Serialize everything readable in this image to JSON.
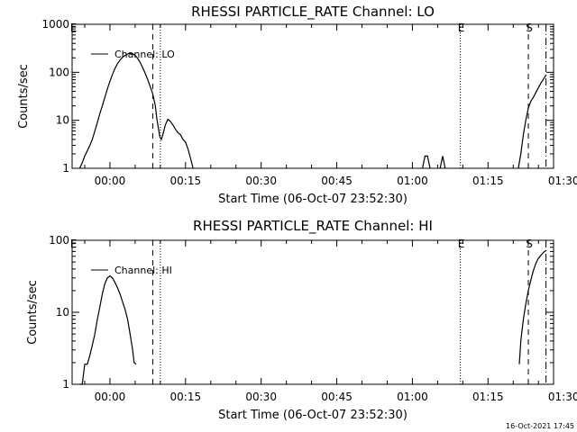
{
  "chart_data": [
    {
      "type": "line",
      "title": "RHESSI PARTICLE_RATE Channel: LO",
      "xlabel": "Start Time (06-Oct-07 23:52:30)",
      "ylabel": "Counts/sec",
      "yscale": "log",
      "ylim": [
        1,
        1000
      ],
      "xlim_minutes": [
        -7.5,
        88
      ],
      "xticks": [
        {
          "label": "00:00",
          "value": 0
        },
        {
          "label": "00:15",
          "value": 15
        },
        {
          "label": "00:30",
          "value": 30
        },
        {
          "label": "00:45",
          "value": 45
        },
        {
          "label": "01:00",
          "value": 60
        },
        {
          "label": "01:15",
          "value": 75
        },
        {
          "label": "01:30",
          "value": 90
        }
      ],
      "yticks": [
        {
          "label": "1",
          "value": 1
        },
        {
          "label": "10",
          "value": 10
        },
        {
          "label": "100",
          "value": 100
        },
        {
          "label": "1000",
          "value": 1000
        }
      ],
      "legend": {
        "label": "Channel: LO",
        "placement": "top-left"
      },
      "markers": [
        {
          "label": "E",
          "x": -7.4,
          "style": "none"
        },
        {
          "label": "",
          "x": 8.5,
          "style": "dashed"
        },
        {
          "label": "",
          "x": 10.0,
          "style": "dotted"
        },
        {
          "label": "E",
          "x": 69.5,
          "style": "dotted"
        },
        {
          "label": "S",
          "x": 83.0,
          "style": "dashed"
        },
        {
          "label": "",
          "x": 86.5,
          "style": "dashdot"
        }
      ],
      "series": [
        {
          "name": "Channel: LO",
          "segments": [
            [
              [
                -6.0,
                1.0
              ],
              [
                -5.5,
                1.3
              ],
              [
                -5.0,
                1.8
              ],
              [
                -4.5,
                2.3
              ],
              [
                -4.0,
                3.0
              ],
              [
                -3.5,
                4.0
              ],
              [
                -3.0,
                6.0
              ],
              [
                -2.5,
                9.0
              ],
              [
                -2.0,
                14.0
              ],
              [
                -1.5,
                20.0
              ],
              [
                -1.0,
                30.0
              ],
              [
                -0.5,
                45.0
              ],
              [
                0.0,
                65.0
              ],
              [
                0.5,
                90.0
              ],
              [
                1.0,
                120.0
              ],
              [
                1.5,
                150.0
              ],
              [
                2.0,
                180.0
              ],
              [
                2.5,
                205.0
              ],
              [
                3.0,
                225.0
              ],
              [
                3.5,
                240.0
              ],
              [
                4.0,
                250.0
              ],
              [
                4.5,
                245.0
              ],
              [
                5.0,
                225.0
              ],
              [
                5.5,
                195.0
              ],
              [
                6.0,
                160.0
              ],
              [
                6.5,
                125.0
              ],
              [
                7.0,
                95.0
              ],
              [
                7.5,
                70.0
              ],
              [
                8.0,
                50.0
              ],
              [
                8.5,
                35.0
              ],
              [
                9.0,
                20.0
              ],
              [
                9.3,
                11.0
              ],
              [
                9.6,
                7.0
              ],
              [
                9.9,
                4.5
              ],
              [
                10.2,
                4.0
              ],
              [
                10.5,
                5.0
              ],
              [
                11.0,
                8.0
              ],
              [
                11.5,
                10.5
              ],
              [
                12.0,
                9.5
              ],
              [
                12.5,
                8.0
              ],
              [
                13.0,
                6.5
              ],
              [
                13.5,
                5.5
              ],
              [
                14.0,
                5.0
              ],
              [
                14.5,
                4.0
              ],
              [
                15.0,
                3.5
              ],
              [
                15.5,
                2.5
              ],
              [
                16.0,
                1.6
              ],
              [
                16.5,
                1.0
              ]
            ],
            [
              [
                62.0,
                1.0
              ],
              [
                62.5,
                1.8
              ],
              [
                63.0,
                1.8
              ],
              [
                63.5,
                1.0
              ]
            ],
            [
              [
                65.5,
                1.0
              ],
              [
                66.0,
                1.8
              ],
              [
                66.5,
                1.0
              ]
            ],
            [
              [
                81.0,
                1.0
              ],
              [
                81.5,
                2.0
              ],
              [
                82.0,
                5.0
              ],
              [
                82.5,
                10.0
              ],
              [
                83.0,
                18.0
              ],
              [
                83.5,
                25.0
              ],
              [
                84.0,
                30.0
              ],
              [
                84.5,
                38.0
              ],
              [
                85.0,
                48.0
              ],
              [
                85.5,
                60.0
              ],
              [
                86.0,
                72.0
              ],
              [
                86.5,
                88.0
              ]
            ]
          ]
        }
      ]
    },
    {
      "type": "line",
      "title": "RHESSI PARTICLE_RATE Channel: HI",
      "xlabel": "Start Time (06-Oct-07 23:52:30)",
      "ylabel": "Counts/sec",
      "yscale": "log",
      "ylim": [
        1,
        100
      ],
      "xlim_minutes": [
        -7.5,
        88
      ],
      "xticks": [
        {
          "label": "00:00",
          "value": 0
        },
        {
          "label": "00:15",
          "value": 15
        },
        {
          "label": "00:30",
          "value": 30
        },
        {
          "label": "00:45",
          "value": 45
        },
        {
          "label": "01:00",
          "value": 60
        },
        {
          "label": "01:15",
          "value": 75
        },
        {
          "label": "01:30",
          "value": 90
        }
      ],
      "yticks": [
        {
          "label": "1",
          "value": 1
        },
        {
          "label": "10",
          "value": 10
        },
        {
          "label": "100",
          "value": 100
        }
      ],
      "legend": {
        "label": "Channel: HI",
        "placement": "top-left"
      },
      "markers": [
        {
          "label": "E",
          "x": -7.4,
          "style": "none"
        },
        {
          "label": "",
          "x": 8.5,
          "style": "dashed"
        },
        {
          "label": "",
          "x": 10.0,
          "style": "dotted"
        },
        {
          "label": "E",
          "x": 69.5,
          "style": "dotted"
        },
        {
          "label": "S",
          "x": 83.0,
          "style": "dashed"
        },
        {
          "label": "",
          "x": 86.5,
          "style": "dashdot"
        }
      ],
      "series": [
        {
          "name": "Channel: HI",
          "segments": [
            [
              [
                -6.0,
                1.0
              ],
              [
                -5.5,
                1.0
              ],
              [
                -5.0,
                1.9
              ],
              [
                -4.5,
                1.9
              ],
              [
                -4.0,
                2.5
              ],
              [
                -3.5,
                3.5
              ],
              [
                -3.0,
                5.0
              ],
              [
                -2.5,
                8.0
              ],
              [
                -2.0,
                12.0
              ],
              [
                -1.5,
                18.0
              ],
              [
                -1.0,
                25.0
              ],
              [
                -0.5,
                30.0
              ],
              [
                0.0,
                32.0
              ],
              [
                0.5,
                30.0
              ],
              [
                1.0,
                26.0
              ],
              [
                1.5,
                22.0
              ],
              [
                2.0,
                18.0
              ],
              [
                2.5,
                14.0
              ],
              [
                3.0,
                11.0
              ],
              [
                3.5,
                8.0
              ],
              [
                4.0,
                5.0
              ],
              [
                4.5,
                3.0
              ],
              [
                4.8,
                2.0
              ],
              [
                5.2,
                1.9
              ]
            ],
            [
              [
                81.2,
                1.9
              ],
              [
                81.5,
                4.0
              ],
              [
                82.0,
                8.0
              ],
              [
                82.5,
                13.0
              ],
              [
                83.0,
                20.0
              ],
              [
                83.5,
                28.0
              ],
              [
                84.0,
                38.0
              ],
              [
                84.5,
                48.0
              ],
              [
                85.0,
                56.0
              ],
              [
                85.5,
                62.0
              ],
              [
                86.0,
                68.0
              ],
              [
                86.5,
                72.0
              ]
            ]
          ]
        }
      ]
    }
  ],
  "footer": {
    "timestamp": "16-Oct-2021 17:45"
  }
}
